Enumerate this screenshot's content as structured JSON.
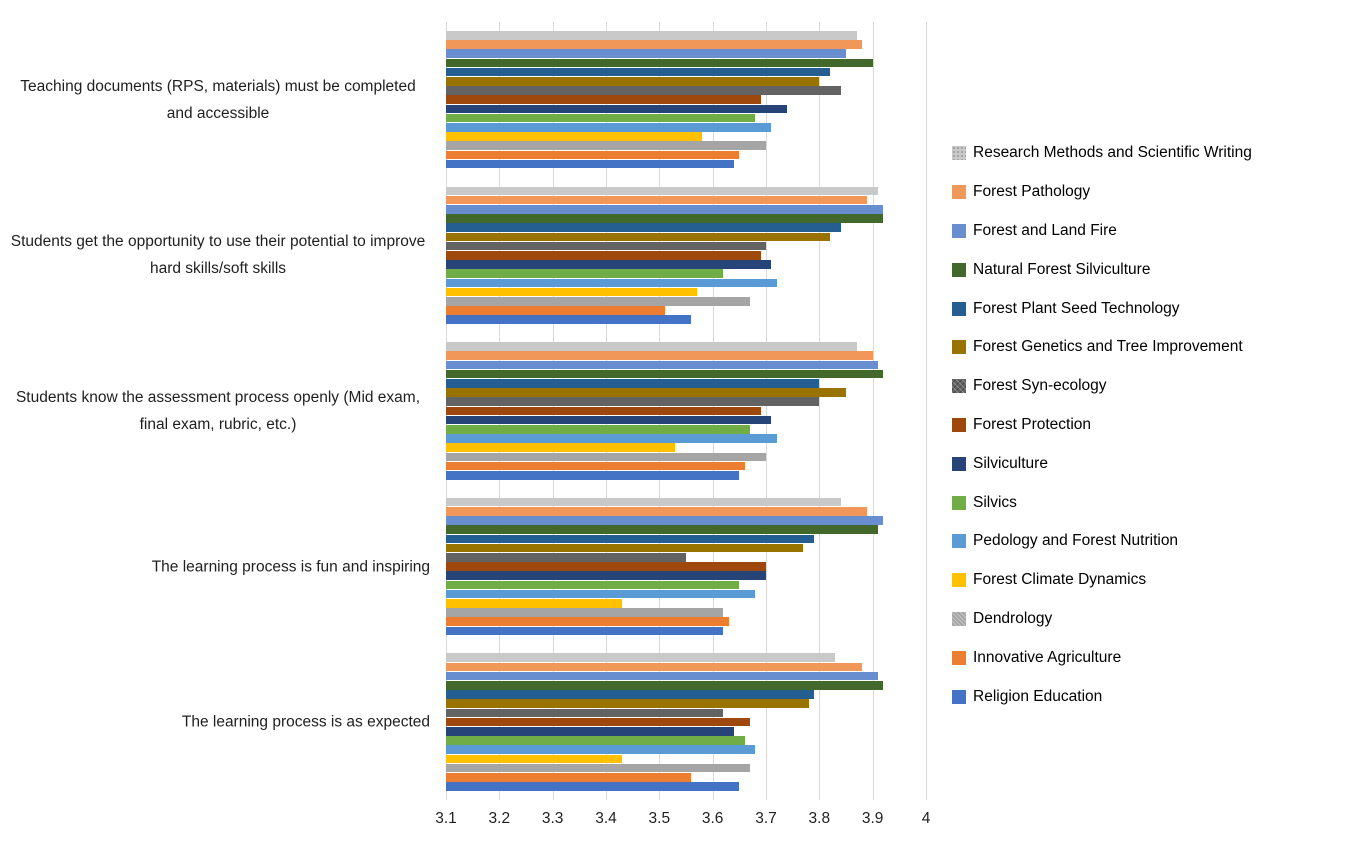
{
  "chart_data": {
    "type": "bar",
    "orientation": "horizontal",
    "title": "",
    "xlabel": "",
    "ylabel": "",
    "grid": true,
    "legend_position": "right",
    "x_axis": {
      "min": 3.1,
      "max": 4.0,
      "tick_step": 0.1,
      "tick_labels": [
        "3.1",
        "3.2",
        "3.3",
        "3.4",
        "3.5",
        "3.6",
        "3.7",
        "3.8",
        "3.9",
        "4"
      ]
    },
    "categories": [
      "Teaching documents (RPS, materials) must be completed and accessible",
      "Students get the opportunity to use their potential to improve hard skills/soft skills",
      "Students know the assessment process openly (Mid exam, final exam, rubric, etc.)",
      "The learning process is fun and inspiring",
      "The learning process is as expected"
    ],
    "series": [
      {
        "name": "Research Methods and Scientific Writing",
        "color": "#c9c9c9",
        "pattern": "dots",
        "values": [
          3.87,
          3.91,
          3.87,
          3.84,
          3.83
        ]
      },
      {
        "name": "Forest Pathology",
        "color": "#f1975a",
        "pattern": null,
        "values": [
          3.88,
          3.89,
          3.9,
          3.89,
          3.88
        ]
      },
      {
        "name": "Forest and Land Fire",
        "color": "#698ed0",
        "pattern": null,
        "values": [
          3.85,
          3.92,
          3.91,
          3.92,
          3.91
        ]
      },
      {
        "name": "Natural Forest Silviculture",
        "color": "#43682b",
        "pattern": null,
        "values": [
          3.9,
          3.92,
          3.92,
          3.91,
          3.92
        ]
      },
      {
        "name": "Forest Plant Seed Technology",
        "color": "#255e91",
        "pattern": null,
        "values": [
          3.82,
          3.84,
          3.8,
          3.79,
          3.79
        ]
      },
      {
        "name": "Forest Genetics and Tree Improvement",
        "color": "#997300",
        "pattern": null,
        "values": [
          3.8,
          3.82,
          3.85,
          3.77,
          3.78
        ]
      },
      {
        "name": "Forest Syn-ecology",
        "color": "#636363",
        "pattern": "cross",
        "values": [
          3.84,
          3.7,
          3.8,
          3.55,
          3.62
        ]
      },
      {
        "name": "Forest Protection",
        "color": "#9e480e",
        "pattern": null,
        "values": [
          3.69,
          3.69,
          3.69,
          3.7,
          3.67
        ]
      },
      {
        "name": "Silviculture",
        "color": "#264478",
        "pattern": null,
        "values": [
          3.74,
          3.71,
          3.71,
          3.7,
          3.64
        ]
      },
      {
        "name": "Silvics",
        "color": "#70ad47",
        "pattern": null,
        "values": [
          3.68,
          3.62,
          3.67,
          3.65,
          3.66
        ]
      },
      {
        "name": "Pedology and Forest Nutrition",
        "color": "#5b9bd5",
        "pattern": null,
        "values": [
          3.71,
          3.72,
          3.72,
          3.68,
          3.68
        ]
      },
      {
        "name": "Forest Climate Dynamics",
        "color": "#ffc000",
        "pattern": null,
        "values": [
          3.58,
          3.57,
          3.53,
          3.43,
          3.43
        ]
      },
      {
        "name": "Dendrology",
        "color": "#a5a5a5",
        "pattern": "diag",
        "values": [
          3.7,
          3.67,
          3.7,
          3.62,
          3.67
        ]
      },
      {
        "name": "Innovative Agriculture",
        "color": "#ed7d31",
        "pattern": null,
        "values": [
          3.65,
          3.51,
          3.66,
          3.63,
          3.56
        ]
      },
      {
        "name": "Religion Education",
        "color": "#4472c4",
        "pattern": null,
        "values": [
          3.64,
          3.56,
          3.65,
          3.62,
          3.65
        ]
      }
    ],
    "gridline_color": "#d9d9d9"
  }
}
